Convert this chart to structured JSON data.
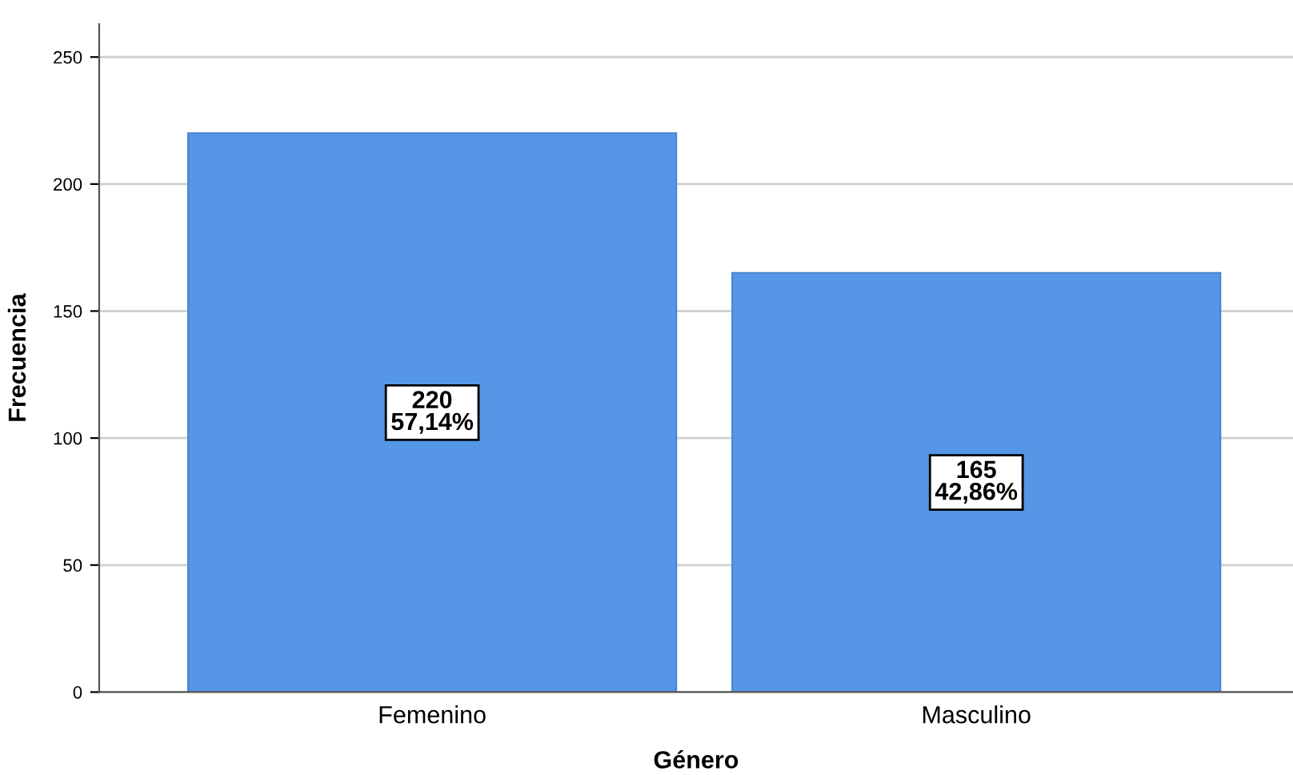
{
  "chart_data": {
    "type": "bar",
    "xlabel": "Género",
    "ylabel": "Frecuencia",
    "categories": [
      "Femenino",
      "Masculino"
    ],
    "values": [
      220,
      165
    ],
    "value_labels": [
      "220\n57,14%",
      "165\n42,86%"
    ],
    "color": "#5596e6",
    "ylim": [
      0,
      263
    ],
    "yticks": [
      0,
      50,
      100,
      150,
      200,
      250
    ],
    "grid": "y",
    "legend": false
  }
}
